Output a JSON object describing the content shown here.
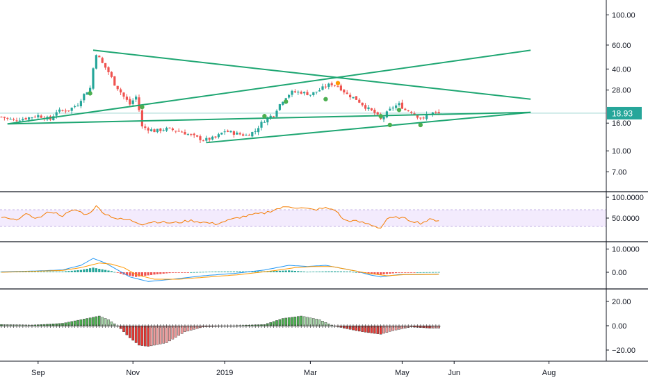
{
  "chart_data": [
    {
      "type": "candlestick",
      "panel": "price",
      "scale": "log",
      "last_price": 18.93,
      "last_price_label": "18.93",
      "ylim": [
        5.5,
        120
      ],
      "yticks": [
        {
          "v": 100,
          "label": "100.00"
        },
        {
          "v": 60,
          "label": "60.00"
        },
        {
          "v": 40,
          "label": "40.00"
        },
        {
          "v": 28,
          "label": "28.00"
        },
        {
          "v": 16,
          "label": "16.00"
        },
        {
          "v": 10,
          "label": "10.00"
        },
        {
          "v": 7,
          "label": "7.00"
        }
      ],
      "xticks": [
        "Sep",
        "Nov",
        "2019",
        "Mar",
        "May",
        "Jun",
        "Aug"
      ],
      "close_path": [
        [
          0,
          17.8
        ],
        [
          4,
          16.8
        ],
        [
          8,
          17.4
        ],
        [
          12,
          18.2
        ],
        [
          16,
          17.0
        ],
        [
          18,
          19.5
        ],
        [
          22,
          20.0
        ],
        [
          25,
          22.0
        ],
        [
          27,
          26.0
        ],
        [
          29,
          29.0
        ],
        [
          31,
          52.0
        ],
        [
          33,
          44.0
        ],
        [
          35,
          38.0
        ],
        [
          37,
          31.0
        ],
        [
          40,
          25.0
        ],
        [
          42,
          22.0
        ],
        [
          44,
          25.0
        ],
        [
          45,
          20.0
        ],
        [
          46,
          15.0
        ],
        [
          50,
          14.0
        ],
        [
          54,
          14.5
        ],
        [
          58,
          14.0
        ],
        [
          62,
          13.0
        ],
        [
          66,
          12.0
        ],
        [
          70,
          12.5
        ],
        [
          73,
          14.0
        ],
        [
          76,
          13.5
        ],
        [
          80,
          13.0
        ],
        [
          83,
          14.0
        ],
        [
          85,
          16.0
        ],
        [
          87,
          17.5
        ],
        [
          89,
          18.5
        ],
        [
          91,
          22.0
        ],
        [
          93,
          25.0
        ],
        [
          95,
          27.0
        ],
        [
          98,
          27.0
        ],
        [
          101,
          26.0
        ],
        [
          104,
          28.0
        ],
        [
          106,
          30.0
        ],
        [
          108,
          31.0
        ],
        [
          110,
          30.0
        ],
        [
          113,
          26.0
        ],
        [
          116,
          24.0
        ],
        [
          119,
          21.0
        ],
        [
          122,
          19.0
        ],
        [
          124,
          17.0
        ],
        [
          126,
          19.0
        ],
        [
          128,
          21.0
        ],
        [
          130,
          22.0
        ],
        [
          132,
          20.0
        ],
        [
          134,
          19.5
        ],
        [
          136,
          18.0
        ],
        [
          138,
          17.0
        ],
        [
          139,
          18.5
        ],
        [
          141,
          19.0
        ],
        [
          143,
          18.9
        ]
      ],
      "markers": [
        {
          "i": 29,
          "price": 26.5,
          "kind": "buy"
        },
        {
          "i": 46,
          "price": 21.0,
          "kind": "buy"
        },
        {
          "i": 86,
          "price": 18.0,
          "kind": "buy"
        },
        {
          "i": 93,
          "price": 23.0,
          "kind": "buy"
        },
        {
          "i": 106,
          "price": 24.0,
          "kind": "buy"
        },
        {
          "i": 110,
          "price": 31.5,
          "kind": "sell"
        },
        {
          "i": 124,
          "price": 18.0,
          "kind": "buy"
        },
        {
          "i": 127,
          "price": 15.5,
          "kind": "buy"
        },
        {
          "i": 130,
          "price": 20.0,
          "kind": "buy"
        },
        {
          "i": 137,
          "price": 15.5,
          "kind": "buy"
        }
      ],
      "trendlines": [
        {
          "from": [
            2,
            15.8
          ],
          "to": [
            173,
            19.2
          ]
        },
        {
          "from": [
            2,
            15.8
          ],
          "to": [
            173,
            55.0
          ]
        },
        {
          "from": [
            30,
            55.0
          ],
          "to": [
            173,
            24.0
          ]
        },
        {
          "from": [
            67,
            11.5
          ],
          "to": [
            173,
            19.2
          ]
        }
      ],
      "horizontal_line": 18.93
    },
    {
      "type": "line",
      "panel": "rsi",
      "ylim": [
        0,
        100
      ],
      "band": [
        30,
        70
      ],
      "yticks": [
        {
          "v": 100,
          "label": "100.0000"
        },
        {
          "v": 50,
          "label": "50.0000"
        }
      ],
      "series_path": [
        [
          0,
          52
        ],
        [
          4,
          45
        ],
        [
          8,
          58
        ],
        [
          12,
          50
        ],
        [
          16,
          66
        ],
        [
          20,
          56
        ],
        [
          24,
          70
        ],
        [
          28,
          58
        ],
        [
          31,
          78
        ],
        [
          34,
          60
        ],
        [
          38,
          48
        ],
        [
          42,
          45
        ],
        [
          46,
          36
        ],
        [
          50,
          42
        ],
        [
          56,
          38
        ],
        [
          62,
          44
        ],
        [
          66,
          40
        ],
        [
          70,
          36
        ],
        [
          74,
          44
        ],
        [
          78,
          52
        ],
        [
          82,
          58
        ],
        [
          86,
          62
        ],
        [
          90,
          72
        ],
        [
          94,
          78
        ],
        [
          98,
          74
        ],
        [
          102,
          70
        ],
        [
          106,
          74
        ],
        [
          109,
          70
        ],
        [
          112,
          45
        ],
        [
          116,
          42
        ],
        [
          120,
          36
        ],
        [
          124,
          26
        ],
        [
          126,
          48
        ],
        [
          130,
          52
        ],
        [
          134,
          44
        ],
        [
          137,
          38
        ],
        [
          140,
          46
        ],
        [
          143,
          45
        ]
      ]
    },
    {
      "type": "macd",
      "panel": "macd",
      "ylim": [
        -6,
        12
      ],
      "yticks": [
        {
          "v": 10,
          "label": "10.0000"
        },
        {
          "v": 0,
          "label": "0.00"
        }
      ],
      "macd_path": [
        [
          0,
          0.2
        ],
        [
          10,
          0.5
        ],
        [
          20,
          1.0
        ],
        [
          26,
          3.0
        ],
        [
          30,
          6.0
        ],
        [
          34,
          4.0
        ],
        [
          38,
          1.0
        ],
        [
          42,
          -2.0
        ],
        [
          48,
          -4.0
        ],
        [
          56,
          -3.0
        ],
        [
          66,
          -1.5
        ],
        [
          76,
          -0.5
        ],
        [
          86,
          1.0
        ],
        [
          94,
          3.0
        ],
        [
          100,
          2.5
        ],
        [
          106,
          3.0
        ],
        [
          110,
          2.0
        ],
        [
          116,
          0.5
        ],
        [
          120,
          -1.0
        ],
        [
          124,
          -2.0
        ],
        [
          130,
          -1.0
        ],
        [
          136,
          -1.0
        ],
        [
          143,
          -0.8
        ]
      ],
      "signal_path": [
        [
          0,
          0.0
        ],
        [
          10,
          0.4
        ],
        [
          20,
          0.8
        ],
        [
          26,
          2.0
        ],
        [
          32,
          4.0
        ],
        [
          36,
          3.5
        ],
        [
          40,
          2.0
        ],
        [
          44,
          -1.0
        ],
        [
          50,
          -3.0
        ],
        [
          58,
          -3.0
        ],
        [
          68,
          -2.0
        ],
        [
          78,
          -1.0
        ],
        [
          88,
          0.5
        ],
        [
          96,
          2.0
        ],
        [
          102,
          2.5
        ],
        [
          108,
          2.5
        ],
        [
          114,
          1.0
        ],
        [
          120,
          -0.5
        ],
        [
          126,
          -1.5
        ],
        [
          132,
          -1.0
        ],
        [
          138,
          -1.0
        ],
        [
          143,
          -0.9
        ]
      ],
      "hist_path": [
        [
          0,
          0.2
        ],
        [
          20,
          0.3
        ],
        [
          26,
          1.0
        ],
        [
          30,
          2.0
        ],
        [
          36,
          0.5
        ],
        [
          40,
          -1.0
        ],
        [
          44,
          -2.0
        ],
        [
          50,
          -1.0
        ],
        [
          56,
          -0.2
        ],
        [
          70,
          0.3
        ],
        [
          86,
          0.4
        ],
        [
          94,
          0.8
        ],
        [
          100,
          0.2
        ],
        [
          108,
          0.4
        ],
        [
          114,
          0.3
        ],
        [
          120,
          -0.5
        ],
        [
          124,
          -1.0
        ],
        [
          130,
          -0.2
        ],
        [
          136,
          0.0
        ],
        [
          143,
          0.1
        ]
      ]
    },
    {
      "type": "histogram",
      "panel": "oscillator",
      "ylim": [
        -28,
        28
      ],
      "yticks": [
        {
          "v": 20,
          "label": "20.00"
        },
        {
          "v": 0,
          "label": "0.00"
        },
        {
          "v": -20,
          "label": "−20.00"
        }
      ],
      "hist_path": [
        [
          0,
          1.0
        ],
        [
          10,
          0.5
        ],
        [
          20,
          2.0
        ],
        [
          28,
          6.0
        ],
        [
          32,
          8.0
        ],
        [
          35,
          5.0
        ],
        [
          38,
          0.0
        ],
        [
          42,
          -10.0
        ],
        [
          45,
          -16.0
        ],
        [
          48,
          -17.0
        ],
        [
          54,
          -14.0
        ],
        [
          60,
          -5.0
        ],
        [
          66,
          -1.0
        ],
        [
          76,
          0.0
        ],
        [
          86,
          1.0
        ],
        [
          92,
          6.0
        ],
        [
          98,
          8.0
        ],
        [
          104,
          5.0
        ],
        [
          108,
          0.5
        ],
        [
          112,
          -2.0
        ],
        [
          118,
          -5.0
        ],
        [
          124,
          -7.0
        ],
        [
          128,
          -4.0
        ],
        [
          134,
          -1.0
        ],
        [
          140,
          -2.0
        ],
        [
          143,
          -2.0
        ]
      ]
    }
  ],
  "colors": {
    "up": "#26a69a",
    "down": "#ef5350",
    "trendline": "#1ea672",
    "price_tag_bg": "#26a69a",
    "rsi_line": "#f57c00",
    "rsi_band": "#e9dbfb",
    "macd_line": "#2196f3",
    "signal_line": "#ff9800",
    "osc_pos_strong": "#4caf50",
    "osc_pos_weak": "#a5d6a7",
    "osc_neg_strong": "#e53935",
    "osc_neg_weak": "#ef9a9a",
    "buy_marker": "#4caf50",
    "sell_marker": "#ff9800"
  }
}
